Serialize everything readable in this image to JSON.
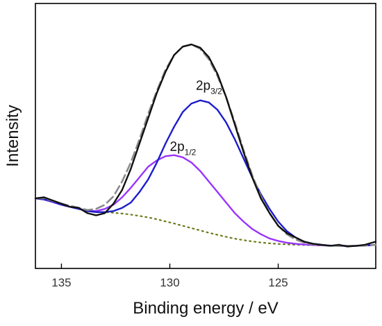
{
  "chart_data": {
    "type": "line",
    "xlabel": "Binding energy / eV",
    "ylabel": "Intensity",
    "xlim": [
      136.2,
      120.5
    ],
    "x_reversed": true,
    "xticks": [
      135,
      130,
      125
    ],
    "y_tick_labels": false,
    "ylim": [
      0,
      1
    ],
    "grid": false,
    "legend": "none",
    "annotations": [
      {
        "text": "2p",
        "sub": "3/2",
        "x": 128.8,
        "y": 0.755
      },
      {
        "text": "2p",
        "sub": "1/2",
        "x": 130.0,
        "y": 0.465
      }
    ],
    "series": [
      {
        "style": "experimental",
        "color": "#111111",
        "x": [
          136.2,
          135.8,
          135.4,
          135.0,
          134.6,
          134.2,
          133.8,
          133.4,
          133.0,
          132.6,
          132.2,
          131.8,
          131.4,
          131.0,
          130.6,
          130.2,
          129.8,
          129.4,
          129.0,
          128.6,
          128.2,
          127.8,
          127.4,
          127.0,
          126.6,
          126.2,
          125.8,
          125.4,
          125.0,
          124.6,
          124.2,
          123.8,
          123.4,
          123.0,
          122.6,
          122.2,
          121.8,
          121.4,
          121.0,
          120.5
        ],
        "y": [
          0.24,
          0.245,
          0.23,
          0.215,
          0.2,
          0.195,
          0.17,
          0.16,
          0.17,
          0.215,
          0.28,
          0.38,
          0.5,
          0.62,
          0.74,
          0.84,
          0.92,
          0.96,
          0.97,
          0.955,
          0.91,
          0.83,
          0.72,
          0.59,
          0.46,
          0.34,
          0.24,
          0.17,
          0.11,
          0.075,
          0.055,
          0.035,
          0.025,
          0.02,
          0.015,
          0.02,
          0.012,
          0.015,
          0.02,
          0.035
        ]
      },
      {
        "style": "envelope-dashed",
        "color": "#8a8a8a",
        "x": [
          136.2,
          135.8,
          135.4,
          135.0,
          134.6,
          134.2,
          133.8,
          133.4,
          133.0,
          132.6,
          132.2,
          131.8,
          131.4,
          131.0,
          130.6,
          130.2,
          129.8,
          129.4,
          129.0,
          128.6,
          128.2,
          127.8,
          127.4,
          127.0,
          126.6,
          126.2,
          125.8,
          125.4,
          125.0,
          124.6,
          124.2,
          123.8,
          123.4,
          123.0,
          122.6,
          122.2,
          121.8,
          121.4,
          121.0,
          120.5
        ],
        "y": [
          0.24,
          0.24,
          0.228,
          0.215,
          0.205,
          0.195,
          0.185,
          0.19,
          0.21,
          0.25,
          0.32,
          0.41,
          0.52,
          0.64,
          0.75,
          0.85,
          0.92,
          0.96,
          0.97,
          0.95,
          0.9,
          0.82,
          0.72,
          0.6,
          0.47,
          0.35,
          0.25,
          0.17,
          0.11,
          0.07,
          0.045,
          0.03,
          0.022,
          0.018,
          0.016,
          0.015,
          0.015,
          0.015,
          0.016,
          0.02
        ]
      },
      {
        "name": "2p3/2",
        "color": "#1c1ccc",
        "x": [
          136.2,
          135.8,
          135.4,
          135.0,
          134.6,
          134.2,
          133.8,
          133.4,
          133.0,
          132.6,
          132.2,
          131.8,
          131.4,
          131.0,
          130.6,
          130.2,
          129.8,
          129.4,
          129.0,
          128.6,
          128.2,
          127.8,
          127.4,
          127.0,
          126.6,
          126.2,
          125.8,
          125.4,
          125.0,
          124.6,
          124.2,
          123.8,
          123.4,
          123.0,
          122.6,
          122.2,
          121.8,
          121.4,
          121.0,
          120.5
        ],
        "y": [
          0.24,
          0.235,
          0.225,
          0.21,
          0.2,
          0.19,
          0.18,
          0.175,
          0.175,
          0.18,
          0.195,
          0.22,
          0.27,
          0.33,
          0.41,
          0.5,
          0.58,
          0.65,
          0.69,
          0.705,
          0.695,
          0.66,
          0.6,
          0.52,
          0.43,
          0.34,
          0.26,
          0.19,
          0.13,
          0.085,
          0.055,
          0.035,
          0.025,
          0.02,
          0.016,
          0.015,
          0.015,
          0.015,
          0.016,
          0.02
        ]
      },
      {
        "name": "2p1/2",
        "color": "#9933ff",
        "x": [
          136.2,
          135.8,
          135.4,
          135.0,
          134.6,
          134.2,
          133.8,
          133.4,
          133.0,
          132.6,
          132.2,
          131.8,
          131.4,
          131.0,
          130.6,
          130.2,
          129.8,
          129.4,
          129.0,
          128.6,
          128.2,
          127.8,
          127.4,
          127.0,
          126.6,
          126.2,
          125.8,
          125.4,
          125.0,
          124.6,
          124.2,
          123.8,
          123.4,
          123.0,
          122.6,
          122.2,
          121.8,
          121.4,
          121.0,
          120.5
        ],
        "y": [
          0.24,
          0.235,
          0.222,
          0.21,
          0.2,
          0.19,
          0.182,
          0.18,
          0.19,
          0.21,
          0.245,
          0.29,
          0.34,
          0.39,
          0.42,
          0.44,
          0.445,
          0.435,
          0.41,
          0.37,
          0.32,
          0.27,
          0.22,
          0.17,
          0.13,
          0.095,
          0.07,
          0.05,
          0.038,
          0.03,
          0.025,
          0.021,
          0.019,
          0.017,
          0.016,
          0.015,
          0.015,
          0.015,
          0.016,
          0.02
        ]
      },
      {
        "style": "background-dotted",
        "color": "#6b7a1a",
        "x": [
          136.2,
          135.8,
          135.4,
          135.0,
          134.6,
          134.2,
          133.8,
          133.4,
          133.0,
          132.6,
          132.2,
          131.8,
          131.4,
          131.0,
          130.6,
          130.2,
          129.8,
          129.4,
          129.0,
          128.6,
          128.2,
          127.8,
          127.4,
          127.0,
          126.6,
          126.2,
          125.8,
          125.4,
          125.0,
          124.6,
          124.2,
          123.8,
          123.4,
          123.0,
          122.6,
          122.2,
          121.8,
          121.4,
          121.0,
          120.5
        ],
        "y": [
          0.24,
          0.235,
          0.222,
          0.21,
          0.2,
          0.19,
          0.182,
          0.178,
          0.175,
          0.172,
          0.168,
          0.163,
          0.157,
          0.15,
          0.141,
          0.131,
          0.121,
          0.11,
          0.099,
          0.088,
          0.077,
          0.067,
          0.058,
          0.049,
          0.042,
          0.036,
          0.031,
          0.027,
          0.024,
          0.022,
          0.02,
          0.019,
          0.018,
          0.017,
          0.016,
          0.016,
          0.015,
          0.015,
          0.016,
          0.02
        ]
      }
    ]
  }
}
